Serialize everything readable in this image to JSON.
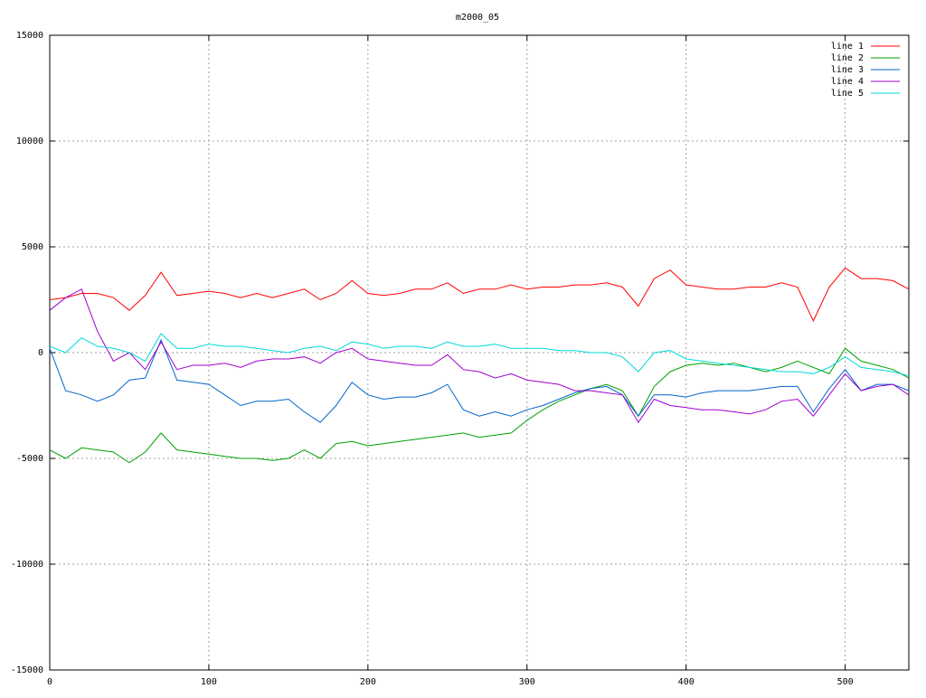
{
  "chart_data": {
    "type": "line",
    "title": "m2000_05",
    "x": [
      0,
      10,
      20,
      30,
      40,
      50,
      60,
      70,
      80,
      90,
      100,
      110,
      120,
      130,
      140,
      150,
      160,
      170,
      180,
      190,
      200,
      210,
      220,
      230,
      240,
      250,
      260,
      270,
      280,
      290,
      300,
      310,
      320,
      330,
      340,
      350,
      360,
      370,
      380,
      390,
      400,
      410,
      420,
      430,
      440,
      450,
      460,
      470,
      480,
      490,
      500,
      510,
      520,
      530,
      540
    ],
    "series": [
      {
        "name": "line 1",
        "color": "#ff0000",
        "values": [
          2500,
          2600,
          2800,
          2800,
          2600,
          2000,
          2700,
          3800,
          2700,
          2800,
          2900,
          2800,
          2600,
          2800,
          2600,
          2800,
          3000,
          2500,
          2800,
          3400,
          2800,
          2700,
          2800,
          3000,
          3000,
          3300,
          2800,
          3000,
          3000,
          3200,
          3000,
          3100,
          3100,
          3200,
          3200,
          3300,
          3100,
          2200,
          3500,
          3900,
          3200,
          3100,
          3000,
          3000,
          3100,
          3100,
          3300,
          3100,
          1500,
          3100,
          4000,
          3500,
          3500,
          3400,
          3000
        ]
      },
      {
        "name": "line 2",
        "color": "#00a000",
        "values": [
          -4600,
          -5000,
          -4500,
          -4600,
          -4700,
          -5200,
          -4700,
          -3800,
          -4600,
          -4700,
          -4800,
          -4900,
          -5000,
          -5000,
          -5100,
          -5000,
          -4600,
          -5000,
          -4300,
          -4200,
          -4400,
          -4300,
          -4200,
          -4100,
          -4000,
          -3900,
          -3800,
          -4000,
          -3900,
          -3800,
          -3200,
          -2700,
          -2300,
          -2000,
          -1700,
          -1500,
          -1800,
          -3000,
          -1600,
          -900,
          -600,
          -500,
          -600,
          -500,
          -700,
          -900,
          -700,
          -400,
          -700,
          -1000,
          200,
          -400,
          -600,
          -800,
          -1200
        ]
      },
      {
        "name": "line 3",
        "color": "#0066cc",
        "values": [
          200,
          -1800,
          -2000,
          -2300,
          -2000,
          -1300,
          -1200,
          600,
          -1300,
          -1400,
          -1500,
          -2000,
          -2500,
          -2300,
          -2300,
          -2200,
          -2800,
          -3300,
          -2500,
          -1400,
          -2000,
          -2200,
          -2100,
          -2100,
          -1900,
          -1500,
          -2700,
          -3000,
          -2800,
          -3000,
          -2700,
          -2500,
          -2200,
          -1900,
          -1700,
          -1600,
          -2000,
          -3000,
          -2000,
          -2000,
          -2100,
          -1900,
          -1800,
          -1800,
          -1800,
          -1700,
          -1600,
          -1600,
          -2800,
          -1700,
          -800,
          -1800,
          -1500,
          -1500,
          -1800
        ]
      },
      {
        "name": "line 4",
        "color": "#a000d0",
        "values": [
          2000,
          2600,
          3000,
          1000,
          -400,
          0,
          -800,
          500,
          -800,
          -600,
          -600,
          -500,
          -700,
          -400,
          -300,
          -300,
          -200,
          -500,
          0,
          200,
          -300,
          -400,
          -500,
          -600,
          -600,
          -100,
          -800,
          -900,
          -1200,
          -1000,
          -1300,
          -1400,
          -1500,
          -1800,
          -1800,
          -1900,
          -2000,
          -3300,
          -2200,
          -2500,
          -2600,
          -2700,
          -2700,
          -2800,
          -2900,
          -2700,
          -2300,
          -2200,
          -3000,
          -2000,
          -1000,
          -1800,
          -1600,
          -1500,
          -2000
        ]
      },
      {
        "name": "line 5",
        "color": "#00d8d8",
        "values": [
          300,
          0,
          700,
          300,
          200,
          0,
          -400,
          900,
          200,
          200,
          400,
          300,
          300,
          200,
          100,
          0,
          200,
          300,
          100,
          500,
          400,
          200,
          300,
          300,
          200,
          500,
          300,
          300,
          400,
          200,
          200,
          200,
          100,
          100,
          0,
          0,
          -200,
          -900,
          0,
          100,
          -300,
          -400,
          -500,
          -600,
          -700,
          -800,
          -900,
          -900,
          -1000,
          -700,
          -200,
          -700,
          -800,
          -900,
          -1100
        ]
      }
    ],
    "xlim": [
      0,
      540
    ],
    "xticks": [
      0,
      100,
      200,
      300,
      400,
      500
    ],
    "ylim": [
      -15000,
      15000
    ],
    "yticks": [
      -15000,
      -10000,
      -5000,
      0,
      5000,
      10000,
      15000
    ],
    "grid": true,
    "legend": "top-right"
  }
}
